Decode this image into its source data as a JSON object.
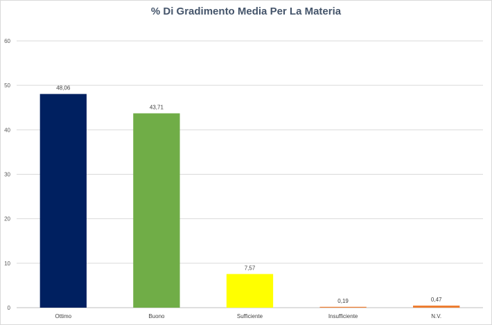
{
  "chart_data": {
    "type": "bar",
    "title": "% Di Gradimento Media Per La Materia",
    "categories": [
      "Ottimo",
      "Buono",
      "Sufficiente",
      "Insufficiente",
      "N.V."
    ],
    "values": [
      48.06,
      43.71,
      7.57,
      0.19,
      0.47
    ],
    "data_labels": [
      "48,06",
      "43,71",
      "7,57",
      "0,19",
      "0,47"
    ],
    "colors": [
      "#002060",
      "#70ad47",
      "#ffff00",
      "#ed7d31",
      "#ed7d31"
    ],
    "ylim": [
      0,
      60
    ],
    "yticks": [
      0,
      10,
      20,
      30,
      40,
      50,
      60
    ],
    "grid": true,
    "legend": "none",
    "xlabel": "",
    "ylabel": ""
  }
}
